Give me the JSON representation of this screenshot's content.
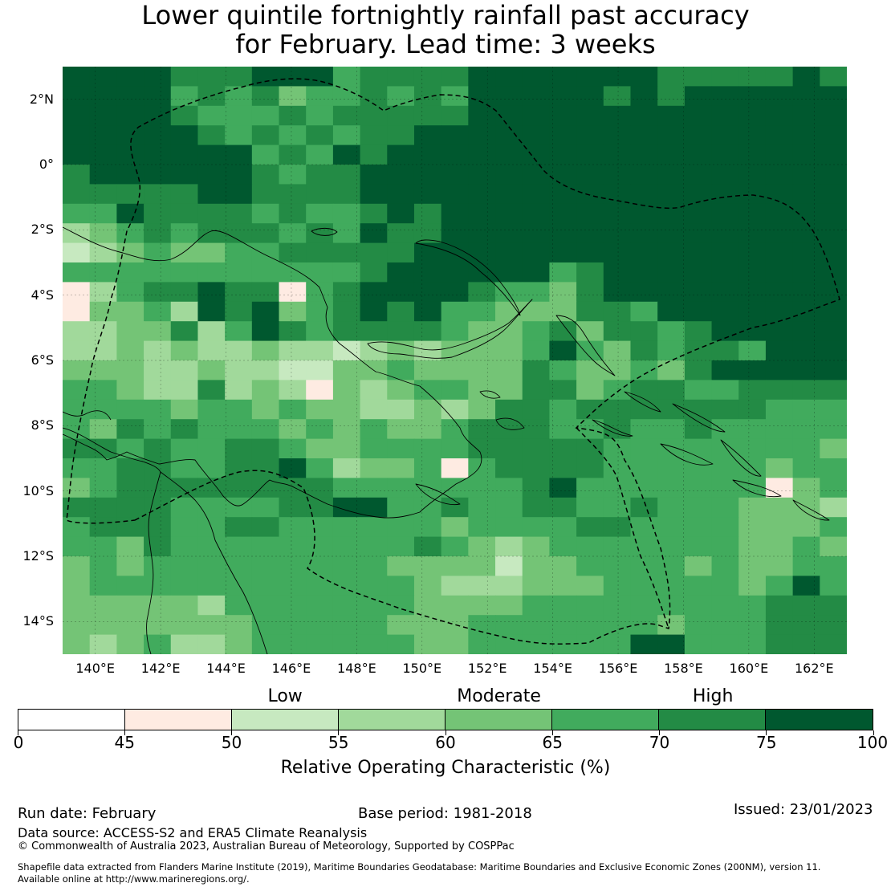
{
  "title": {
    "line1": "Lower quintile fortnightly rainfall past accuracy",
    "line2": "for February. Lead time: 3 weeks"
  },
  "map": {
    "lat_labels": [
      "2°N",
      "0°",
      "2°S",
      "4°S",
      "6°S",
      "8°S",
      "10°S",
      "12°S",
      "14°S"
    ],
    "lon_labels": [
      "140°E",
      "142°E",
      "144°E",
      "146°E",
      "148°E",
      "150°E",
      "152°E",
      "154°E",
      "156°E",
      "158°E",
      "160°E",
      "162°E"
    ],
    "extent": {
      "lon_min": 139.0,
      "lon_max": 163.0,
      "lat_min": -15.0,
      "lat_max": 3.0
    },
    "grid_resolution_deg": 0.83,
    "roc_grid": [
      [
        "75+",
        "75+",
        "75+",
        "75+",
        "70-75",
        "70-75",
        "70-75",
        "75+",
        "75+",
        "75+",
        "65-70",
        "70-75",
        "70-75",
        "70-75",
        "70-75",
        "75+",
        "75+",
        "75+",
        "75+",
        "75+",
        "75+",
        "75+",
        "70-75",
        "70-75",
        "70-75",
        "70-75",
        "70-75",
        "75+",
        "70-75"
      ],
      [
        "75+",
        "75+",
        "75+",
        "75+",
        "65-70",
        "70-75",
        "65-70",
        "70-75",
        "60-65",
        "65-70",
        "65-70",
        "70-75",
        "65-70",
        "70-75",
        "65-70",
        "75+",
        "75+",
        "75+",
        "75+",
        "75+",
        "70-75",
        "75+",
        "70-75",
        "75+",
        "75+",
        "75+",
        "75+",
        "75+",
        "75+"
      ],
      [
        "75+",
        "75+",
        "75+",
        "75+",
        "70-75",
        "65-70",
        "65-70",
        "65-70",
        "70-75",
        "65-70",
        "70-75",
        "70-75",
        "70-75",
        "70-75",
        "70-75",
        "75+",
        "75+",
        "75+",
        "75+",
        "75+",
        "75+",
        "75+",
        "75+",
        "75+",
        "75+",
        "75+",
        "75+",
        "75+",
        "75+"
      ],
      [
        "75+",
        "75+",
        "75+",
        "75+",
        "75+",
        "70-75",
        "65-70",
        "70-75",
        "65-70",
        "70-75",
        "65-70",
        "70-75",
        "70-75",
        "75+",
        "75+",
        "75+",
        "75+",
        "75+",
        "75+",
        "75+",
        "75+",
        "75+",
        "75+",
        "75+",
        "75+",
        "75+",
        "75+",
        "75+",
        "75+"
      ],
      [
        "75+",
        "75+",
        "75+",
        "75+",
        "75+",
        "75+",
        "75+",
        "65-70",
        "70-75",
        "65-70",
        "75+",
        "70-75",
        "75+",
        "75+",
        "75+",
        "75+",
        "75+",
        "75+",
        "75+",
        "75+",
        "75+",
        "75+",
        "75+",
        "75+",
        "75+",
        "75+",
        "75+",
        "75+",
        "75+"
      ],
      [
        "70-75",
        "75+",
        "75+",
        "75+",
        "75+",
        "75+",
        "75+",
        "70-75",
        "65-70",
        "70-75",
        "70-75",
        "75+",
        "75+",
        "75+",
        "75+",
        "75+",
        "75+",
        "75+",
        "75+",
        "75+",
        "75+",
        "75+",
        "75+",
        "75+",
        "75+",
        "75+",
        "75+",
        "75+",
        "75+"
      ],
      [
        "70-75",
        "70-75",
        "70-75",
        "70-75",
        "70-75",
        "75+",
        "75+",
        "70-75",
        "70-75",
        "70-75",
        "70-75",
        "75+",
        "75+",
        "75+",
        "75+",
        "75+",
        "75+",
        "75+",
        "75+",
        "75+",
        "75+",
        "75+",
        "75+",
        "75+",
        "75+",
        "75+",
        "75+",
        "75+",
        "75+"
      ],
      [
        "65-70",
        "65-70",
        "75+",
        "70-75",
        "70-75",
        "70-75",
        "70-75",
        "65-70",
        "70-75",
        "65-70",
        "65-70",
        "70-75",
        "75+",
        "70-75",
        "75+",
        "75+",
        "75+",
        "75+",
        "75+",
        "75+",
        "75+",
        "75+",
        "75+",
        "75+",
        "75+",
        "75+",
        "75+",
        "75+",
        "75+"
      ],
      [
        "55-60",
        "60-65",
        "65-70",
        "70-75",
        "65-70",
        "70-75",
        "70-75",
        "70-75",
        "65-70",
        "70-75",
        "65-70",
        "75+",
        "70-75",
        "70-75",
        "75+",
        "75+",
        "75+",
        "75+",
        "75+",
        "75+",
        "75+",
        "75+",
        "75+",
        "75+",
        "75+",
        "75+",
        "75+",
        "75+",
        "75+"
      ],
      [
        "50-55",
        "55-60",
        "60-65",
        "65-70",
        "60-65",
        "60-65",
        "65-70",
        "65-70",
        "70-75",
        "70-75",
        "70-75",
        "70-75",
        "70-75",
        "75+",
        "75+",
        "75+",
        "75+",
        "75+",
        "75+",
        "75+",
        "75+",
        "75+",
        "75+",
        "75+",
        "75+",
        "75+",
        "75+",
        "75+",
        "75+"
      ],
      [
        "65-70",
        "65-70",
        "65-70",
        "65-70",
        "65-70",
        "65-70",
        "65-70",
        "65-70",
        "65-70",
        "65-70",
        "65-70",
        "70-75",
        "75+",
        "75+",
        "75+",
        "75+",
        "75+",
        "75+",
        "65-70",
        "70-75",
        "75+",
        "75+",
        "75+",
        "75+",
        "75+",
        "75+",
        "75+",
        "75+",
        "75+"
      ],
      [
        "45-50",
        "55-60",
        "65-70",
        "70-75",
        "70-75",
        "75+",
        "70-75",
        "70-75",
        "45-50",
        "65-70",
        "70-75",
        "75+",
        "75+",
        "75+",
        "75+",
        "70-75",
        "65-70",
        "65-70",
        "60-65",
        "70-75",
        "75+",
        "75+",
        "75+",
        "75+",
        "75+",
        "75+",
        "75+",
        "75+",
        "75+"
      ],
      [
        "45-50",
        "60-65",
        "60-65",
        "65-70",
        "55-60",
        "75+",
        "70-75",
        "75+",
        "60-65",
        "65-70",
        "70-75",
        "75+",
        "70-75",
        "75+",
        "65-70",
        "65-70",
        "60-65",
        "60-65",
        "60-65",
        "70-75",
        "70-75",
        "65-70",
        "75+",
        "75+",
        "75+",
        "75+",
        "75+",
        "75+",
        "75+"
      ],
      [
        "55-60",
        "55-60",
        "60-65",
        "60-65",
        "70-75",
        "55-60",
        "65-70",
        "75+",
        "70-75",
        "65-70",
        "70-75",
        "70-75",
        "70-75",
        "70-75",
        "65-70",
        "60-65",
        "60-65",
        "65-70",
        "70-75",
        "60-65",
        "70-75",
        "70-75",
        "65-70",
        "70-75",
        "75+",
        "75+",
        "75+",
        "75+",
        "75+"
      ],
      [
        "55-60",
        "55-60",
        "60-65",
        "55-60",
        "60-65",
        "55-60",
        "55-60",
        "60-65",
        "55-60",
        "55-60",
        "50-55",
        "55-60",
        "60-65",
        "55-60",
        "60-65",
        "60-65",
        "60-65",
        "65-70",
        "75+",
        "65-70",
        "60-65",
        "70-75",
        "65-70",
        "70-75",
        "70-75",
        "65-70",
        "75+",
        "75+",
        "75+"
      ],
      [
        "60-65",
        "60-65",
        "60-65",
        "55-60",
        "55-60",
        "60-65",
        "55-60",
        "55-60",
        "50-55",
        "50-55",
        "60-65",
        "60-65",
        "65-70",
        "60-65",
        "60-65",
        "60-65",
        "60-65",
        "70-75",
        "65-70",
        "60-65",
        "60-65",
        "65-70",
        "60-65",
        "70-75",
        "75+",
        "75+",
        "75+",
        "75+",
        "75+"
      ],
      [
        "65-70",
        "65-70",
        "60-65",
        "55-60",
        "55-60",
        "70-75",
        "55-60",
        "60-65",
        "55-60",
        "45-50",
        "60-65",
        "55-60",
        "60-65",
        "65-70",
        "65-70",
        "60-65",
        "60-65",
        "70-75",
        "70-75",
        "60-65",
        "65-70",
        "70-75",
        "70-75",
        "65-70",
        "65-70",
        "70-75",
        "70-75",
        "70-75",
        "70-75"
      ],
      [
        "65-70",
        "65-70",
        "65-70",
        "65-70",
        "60-65",
        "65-70",
        "65-70",
        "60-65",
        "65-70",
        "60-65",
        "60-65",
        "55-60",
        "55-60",
        "60-65",
        "55-60",
        "60-65",
        "70-75",
        "70-75",
        "65-70",
        "70-75",
        "70-75",
        "70-75",
        "70-75",
        "70-75",
        "70-75",
        "70-75",
        "65-70",
        "65-70",
        "65-70"
      ],
      [
        "65-70",
        "60-65",
        "70-75",
        "65-70",
        "70-75",
        "65-70",
        "65-70",
        "65-70",
        "60-65",
        "65-70",
        "60-65",
        "65-70",
        "60-65",
        "60-65",
        "65-70",
        "70-75",
        "70-75",
        "70-75",
        "65-70",
        "65-70",
        "70-75",
        "65-70",
        "65-70",
        "70-75",
        "65-70",
        "65-70",
        "65-70",
        "65-70",
        "65-70"
      ],
      [
        "70-75",
        "70-75",
        "65-70",
        "70-75",
        "65-70",
        "65-70",
        "70-75",
        "70-75",
        "65-70",
        "60-65",
        "60-65",
        "65-70",
        "65-70",
        "65-70",
        "65-70",
        "70-75",
        "70-75",
        "70-75",
        "70-75",
        "70-75",
        "65-70",
        "65-70",
        "65-70",
        "65-70",
        "65-70",
        "65-70",
        "65-70",
        "65-70",
        "60-65"
      ],
      [
        "65-70",
        "65-70",
        "70-75",
        "70-75",
        "65-70",
        "65-70",
        "70-75",
        "70-75",
        "75+",
        "65-70",
        "55-60",
        "60-65",
        "60-65",
        "65-70",
        "45-50",
        "65-70",
        "70-75",
        "70-75",
        "70-75",
        "70-75",
        "65-70",
        "65-70",
        "65-70",
        "65-70",
        "65-70",
        "65-70",
        "60-65",
        "65-70",
        "65-70"
      ],
      [
        "60-65",
        "65-70",
        "70-75",
        "70-75",
        "70-75",
        "70-75",
        "70-75",
        "70-75",
        "70-75",
        "70-75",
        "65-70",
        "65-70",
        "65-70",
        "65-70",
        "65-70",
        "65-70",
        "65-70",
        "70-75",
        "75+",
        "65-70",
        "65-70",
        "65-70",
        "65-70",
        "65-70",
        "65-70",
        "65-70",
        "45-50",
        "60-65",
        "65-70"
      ],
      [
        "70-75",
        "70-75",
        "70-75",
        "70-75",
        "65-70",
        "65-70",
        "65-70",
        "65-70",
        "70-75",
        "70-75",
        "75+",
        "75+",
        "65-70",
        "65-70",
        "70-75",
        "65-70",
        "65-70",
        "70-75",
        "70-75",
        "65-70",
        "65-70",
        "70-75",
        "65-70",
        "65-70",
        "65-70",
        "60-65",
        "60-65",
        "60-65",
        "55-60"
      ],
      [
        "65-70",
        "70-75",
        "70-75",
        "70-75",
        "65-70",
        "65-70",
        "70-75",
        "70-75",
        "65-70",
        "65-70",
        "65-70",
        "65-70",
        "65-70",
        "65-70",
        "60-65",
        "65-70",
        "65-70",
        "65-70",
        "65-70",
        "70-75",
        "70-75",
        "65-70",
        "65-70",
        "65-70",
        "65-70",
        "60-65",
        "60-65",
        "60-65",
        "65-70"
      ],
      [
        "65-70",
        "65-70",
        "60-65",
        "70-75",
        "65-70",
        "65-70",
        "65-70",
        "65-70",
        "65-70",
        "65-70",
        "65-70",
        "65-70",
        "65-70",
        "70-75",
        "65-70",
        "60-65",
        "55-60",
        "60-65",
        "65-70",
        "65-70",
        "65-70",
        "65-70",
        "65-70",
        "65-70",
        "65-70",
        "60-65",
        "60-65",
        "65-70",
        "60-65"
      ],
      [
        "60-65",
        "65-70",
        "60-65",
        "65-70",
        "65-70",
        "65-70",
        "65-70",
        "65-70",
        "65-70",
        "65-70",
        "65-70",
        "65-70",
        "60-65",
        "60-65",
        "60-65",
        "60-65",
        "50-55",
        "60-65",
        "60-65",
        "65-70",
        "65-70",
        "65-70",
        "65-70",
        "60-65",
        "65-70",
        "60-65",
        "60-65",
        "65-70",
        "65-70"
      ],
      [
        "60-65",
        "65-70",
        "65-70",
        "65-70",
        "65-70",
        "65-70",
        "65-70",
        "65-70",
        "65-70",
        "65-70",
        "65-70",
        "65-70",
        "65-70",
        "60-65",
        "55-60",
        "55-60",
        "55-60",
        "60-65",
        "60-65",
        "60-65",
        "65-70",
        "65-70",
        "65-70",
        "65-70",
        "65-70",
        "60-65",
        "65-70",
        "75+",
        "65-70"
      ],
      [
        "60-65",
        "60-65",
        "60-65",
        "60-65",
        "60-65",
        "55-60",
        "65-70",
        "65-70",
        "65-70",
        "65-70",
        "65-70",
        "65-70",
        "65-70",
        "60-65",
        "60-65",
        "60-65",
        "60-65",
        "65-70",
        "65-70",
        "65-70",
        "65-70",
        "65-70",
        "65-70",
        "65-70",
        "65-70",
        "65-70",
        "70-75",
        "70-75",
        "70-75"
      ],
      [
        "60-65",
        "60-65",
        "60-65",
        "60-65",
        "60-65",
        "60-65",
        "60-65",
        "65-70",
        "65-70",
        "65-70",
        "65-70",
        "65-70",
        "60-65",
        "60-65",
        "60-65",
        "65-70",
        "65-70",
        "65-70",
        "65-70",
        "65-70",
        "65-70",
        "65-70",
        "60-65",
        "65-70",
        "65-70",
        "65-70",
        "70-75",
        "70-75",
        "70-75"
      ],
      [
        "60-65",
        "55-60",
        "60-65",
        "65-70",
        "55-60",
        "55-60",
        "60-65",
        "65-70",
        "65-70",
        "65-70",
        "65-70",
        "65-70",
        "65-70",
        "60-65",
        "60-65",
        "65-70",
        "65-70",
        "65-70",
        "65-70",
        "65-70",
        "65-70",
        "75+",
        "75+",
        "65-70",
        "65-70",
        "65-70",
        "70-75",
        "70-75",
        "70-75"
      ]
    ],
    "coastlines_note": "Papua New Guinea, Solomon Islands, northern Australia",
    "eez_boundary": "dashed"
  },
  "colorbar": {
    "segments": [
      {
        "range": "0-45",
        "color": "#ffffff"
      },
      {
        "range": "45-50",
        "color": "#feebe2"
      },
      {
        "range": "50-55",
        "color": "#c7e9c0"
      },
      {
        "range": "55-60",
        "color": "#a1d99b"
      },
      {
        "range": "60-65",
        "color": "#74c476"
      },
      {
        "range": "65-70",
        "color": "#41ab5d"
      },
      {
        "range": "70-75",
        "color": "#238b45"
      },
      {
        "range": "75-100",
        "color": "#00582f"
      }
    ],
    "ticks": [
      "0",
      "45",
      "50",
      "55",
      "60",
      "65",
      "70",
      "75",
      "100"
    ],
    "tick_fracs": [
      0,
      0.125,
      0.25,
      0.375,
      0.5,
      0.625,
      0.75,
      0.875,
      1.0
    ],
    "category_labels": [
      {
        "label": "Low",
        "center_value": 52.5
      },
      {
        "label": "Moderate",
        "center_value": 62.5
      },
      {
        "label": "High",
        "center_value": 72.5
      }
    ],
    "axis_label": "Relative Operating Characteristic (%)"
  },
  "footer": {
    "run_date": "Run date: February",
    "base_period": "Base period: 1981-2018",
    "issued": "Issued: 23/01/2023",
    "data_source": "Data source: ACCESS-S2 and ERA5 Climate Reanalysis",
    "copyright": "© Commonwealth of Australia 2023, Australian Bureau of Meteorology, Supported by COSPPac",
    "shapefile_line1": "Shapefile data extracted from Flanders Marine Institute (2019), Maritime Boundaries Geodatabase: Maritime Boundaries and Exclusive Economic Zones (200NM), version 11.",
    "shapefile_line2": "Available online at http://www.marineregions.org/."
  }
}
